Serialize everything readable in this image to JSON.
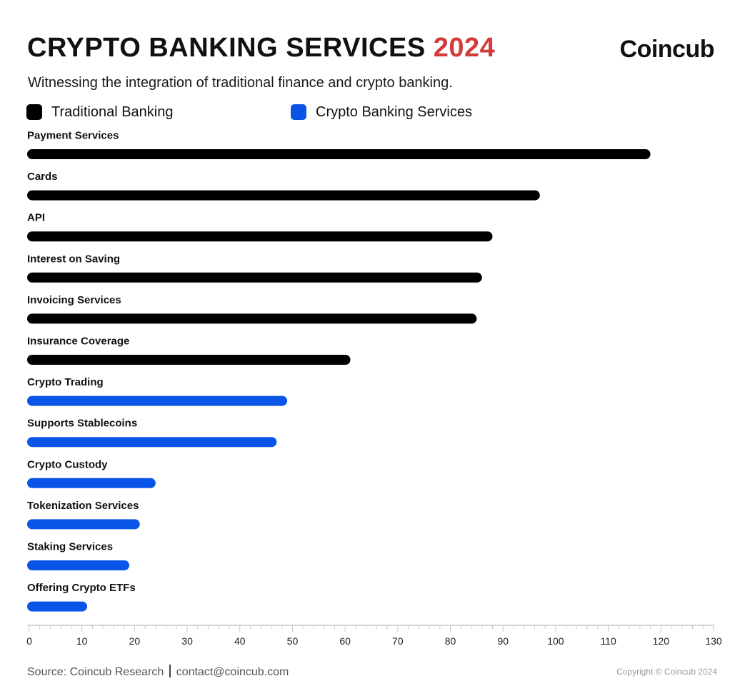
{
  "header": {
    "title_main": "CRYPTO BANKING SERVICES",
    "title_year": "2024",
    "brand": "Coincub",
    "subtitle": "Witnessing the integration of traditional finance and crypto banking."
  },
  "legend": [
    {
      "label": "Traditional Banking",
      "color": "#000000"
    },
    {
      "label": "Crypto Banking Services",
      "color": "#0a55e8"
    }
  ],
  "chart_data": {
    "type": "bar",
    "orientation": "horizontal",
    "categories": [
      "Payment Services",
      "Cards",
      "API",
      "Interest on Saving",
      "Invoicing Services",
      "Insurance Coverage",
      "Crypto Trading",
      "Supports Stablecoins",
      "Crypto Custody",
      "Tokenization Services",
      "Staking Services",
      "Offering Crypto ETFs"
    ],
    "values": [
      118,
      97,
      88,
      86,
      85,
      61,
      49,
      47,
      24,
      21,
      19,
      11
    ],
    "groups": [
      "Traditional Banking",
      "Traditional Banking",
      "Traditional Banking",
      "Traditional Banking",
      "Traditional Banking",
      "Traditional Banking",
      "Crypto Banking Services",
      "Crypto Banking Services",
      "Crypto Banking Services",
      "Crypto Banking Services",
      "Crypto Banking Services",
      "Crypto Banking Services"
    ],
    "xlim": [
      0,
      130
    ],
    "xticks": [
      0,
      10,
      20,
      30,
      40,
      50,
      60,
      70,
      80,
      90,
      100,
      110,
      120,
      130
    ],
    "grid": false,
    "legend_position": "top-left"
  },
  "footer": {
    "source": "Source: Coincub Research",
    "contact": "contact@coincub.com",
    "copyright": "Copyright © Coincub 2024"
  }
}
